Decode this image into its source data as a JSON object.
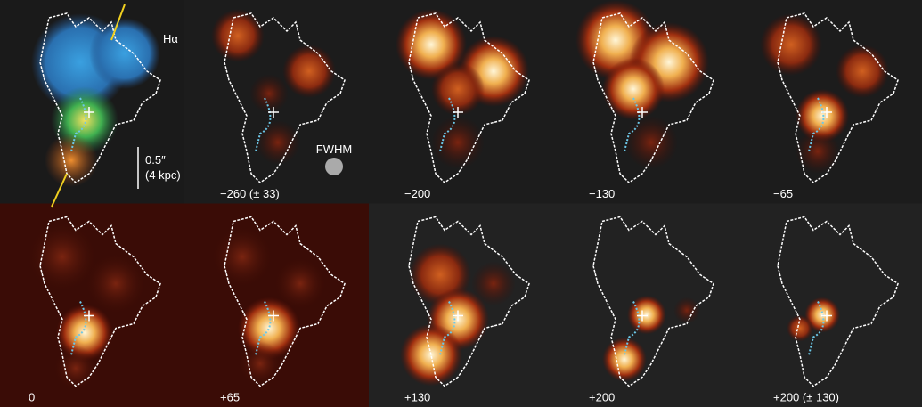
{
  "panels": [
    {
      "label": "Hα"
    },
    {
      "label": "−260 (± 33)"
    },
    {
      "label": "−200"
    },
    {
      "label": "−130"
    },
    {
      "label": "−65"
    },
    {
      "label": "0"
    },
    {
      "label": "+65"
    },
    {
      "label": "+130"
    },
    {
      "label": "+200"
    },
    {
      "label": "+200 (± 130)"
    }
  ],
  "annotations": {
    "scale": "0.5″",
    "scale_kpc": "(4 kpc)",
    "fwhm": "FWHM"
  }
}
